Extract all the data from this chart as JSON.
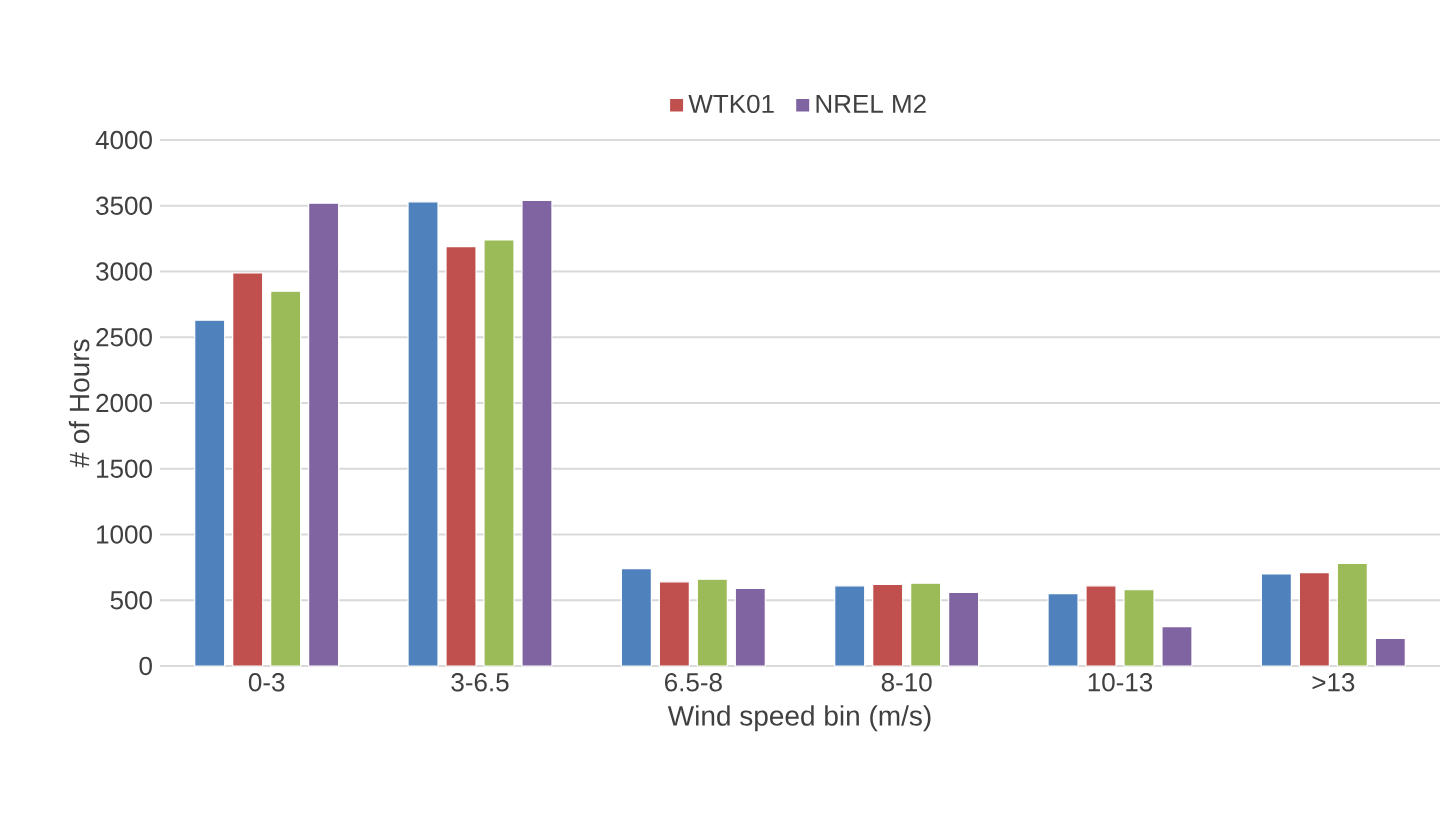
{
  "chart_data": {
    "type": "bar",
    "xlabel": "Wind speed bin (m/s)",
    "ylabel": "# of Hours",
    "categories": [
      "0-3",
      "3-6.5",
      "6.5-8",
      "8-10",
      "10-13",
      ">13"
    ],
    "series": [
      {
        "color": "#4f81bd",
        "values": [
          2630,
          3530,
          740,
          610,
          550,
          700
        ]
      },
      {
        "name": "WTK01",
        "color": "#c0504d",
        "values": [
          2990,
          3190,
          640,
          620,
          610,
          710
        ]
      },
      {
        "color": "#9bbb59",
        "values": [
          2850,
          3240,
          660,
          630,
          580,
          780
        ]
      },
      {
        "name": "NREL M2",
        "color": "#8064a2",
        "values": [
          3520,
          3540,
          590,
          560,
          300,
          210
        ]
      }
    ],
    "ylim": [
      0,
      4000
    ],
    "yticks": [
      0,
      500,
      1000,
      1500,
      2000,
      2500,
      3000,
      3500,
      4000
    ],
    "grid": "y",
    "legend": "top"
  }
}
